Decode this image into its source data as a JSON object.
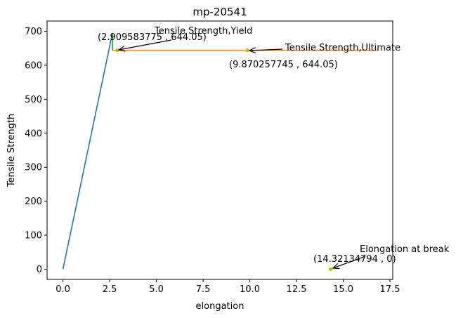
{
  "chart_data": {
    "type": "line",
    "title": "mp-20541",
    "xlabel": "elongation",
    "ylabel": "Tensile Strength",
    "xlim": [
      -0.85,
      17.65
    ],
    "ylim": [
      -30,
      730
    ],
    "xticks": [
      0.0,
      2.5,
      5.0,
      7.5,
      10.0,
      12.5,
      15.0,
      17.5
    ],
    "xtick_labels": [
      "0.0",
      "2.5",
      "5.0",
      "7.5",
      "10.0",
      "12.5",
      "15.0",
      "17.5"
    ],
    "yticks": [
      0,
      100,
      200,
      300,
      400,
      500,
      600,
      700
    ],
    "ytick_labels": [
      "0",
      "100",
      "200",
      "300",
      "400",
      "500",
      "600",
      "700"
    ],
    "grid": false,
    "series": [
      {
        "color": "#1f77b4",
        "x": [
          0,
          2.65
        ],
        "y": [
          0,
          695
        ]
      },
      {
        "color": "#ff7f0e",
        "x": [
          2.65,
          16.9
        ],
        "y": [
          644.05,
          644.05
        ]
      },
      {
        "color": "#2ca02c",
        "x": [
          2.65,
          2.65
        ],
        "y": [
          695,
          644.05
        ]
      }
    ],
    "points": [
      {
        "x": 2.909583775,
        "y": 644.05,
        "color": "#bfbf00"
      },
      {
        "x": 9.870257745,
        "y": 644.05,
        "color": "#bfbf00"
      },
      {
        "x": 14.32134794,
        "y": 0,
        "color": "#bfbf00"
      }
    ],
    "annotations": [
      {
        "label": "Tensile Strength,Yield",
        "coord_text": "(2.909583775 , 644.05)",
        "x": 2.909583775,
        "y": 644.05
      },
      {
        "label": "Tensile Strength,Ultimate",
        "coord_text": "(9.870257745 , 644.05)",
        "x": 9.870257745,
        "y": 644.05
      },
      {
        "label": "Elongation at break",
        "coord_text": "(14.32134794 , 0)",
        "x": 14.32134794,
        "y": 0
      }
    ]
  }
}
